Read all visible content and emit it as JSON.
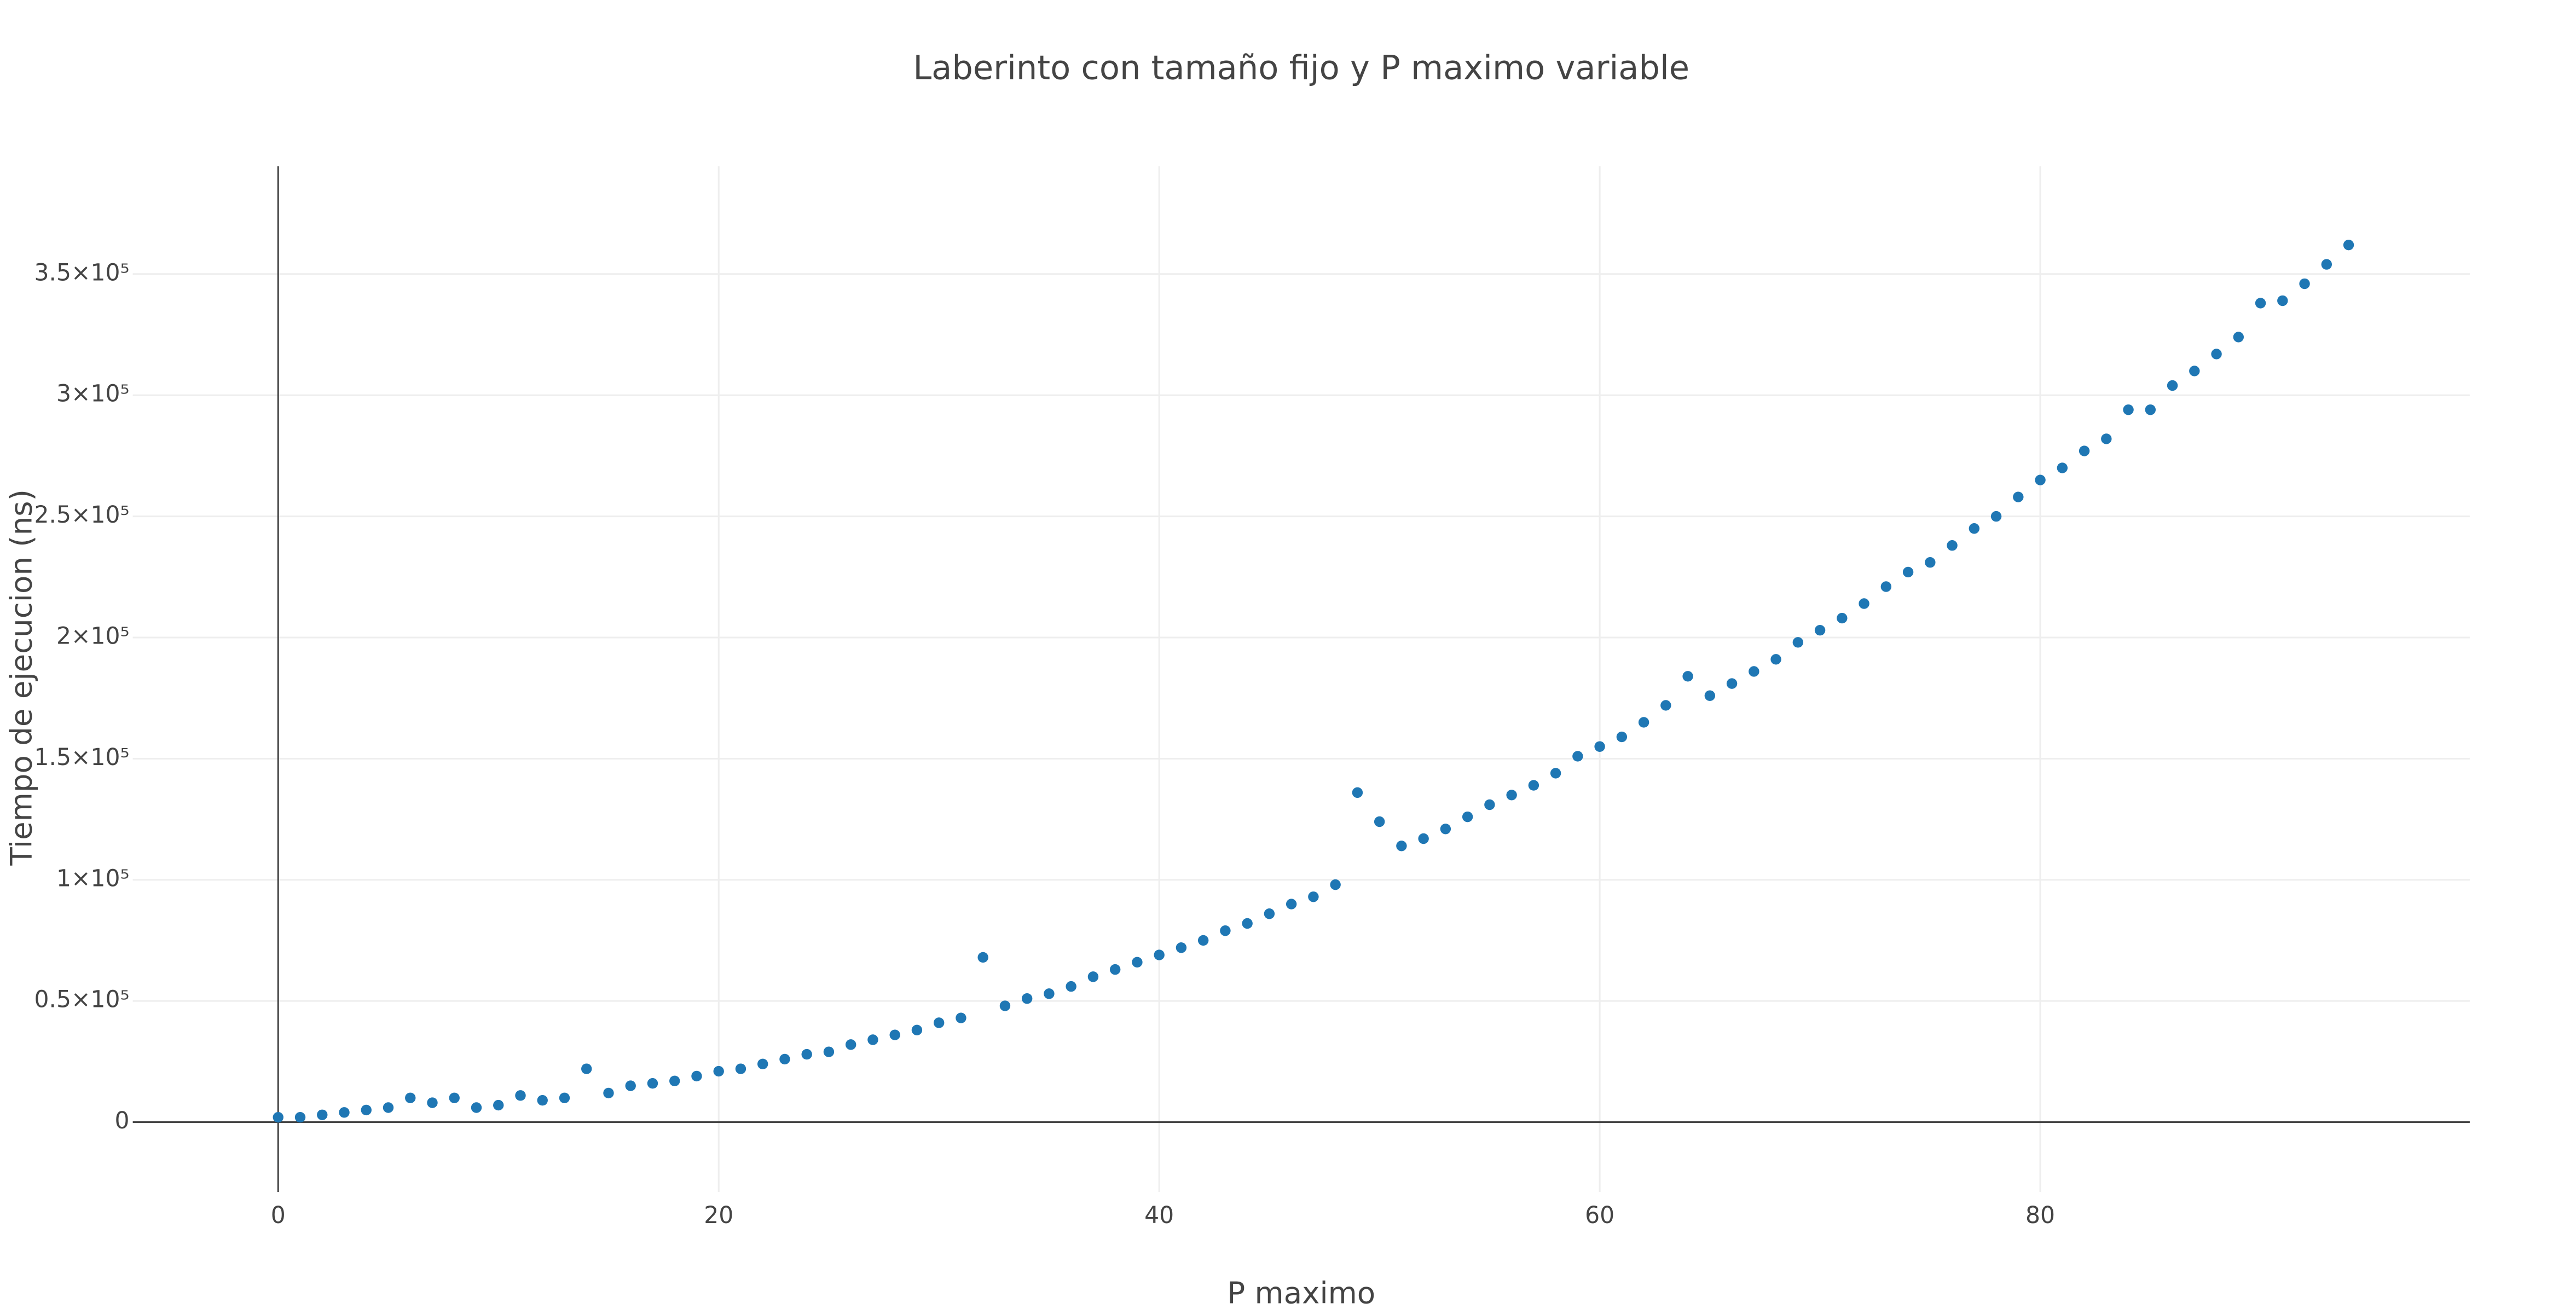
{
  "chart_data": {
    "type": "scatter",
    "title": "Laberinto con tamaño fijo y  P  maximo variable",
    "x_label": "P maximo",
    "y_label": "Tiempo de ejecucion  (ns)",
    "xlim": [
      -6.6,
      99.5
    ],
    "ylim": [
      -28800,
      394500
    ],
    "xticks": [
      0,
      20,
      40,
      60,
      80
    ],
    "yticks": [
      0,
      {
        "value": 50000,
        "label": "0.5×10⁵"
      },
      {
        "value": 100000,
        "label": "1×10⁵"
      },
      {
        "value": 150000,
        "label": "1.5×10⁵"
      },
      {
        "value": 200000,
        "label": "2×10⁵"
      },
      {
        "value": 250000,
        "label": "2.5×10⁵"
      },
      {
        "value": 300000,
        "label": "3×10⁵"
      },
      {
        "value": 350000,
        "label": "3.5×10⁵"
      }
    ],
    "grid": true,
    "color": "#1f77b4",
    "x": [
      0,
      1,
      2,
      3,
      4,
      5,
      6,
      7,
      8,
      9,
      10,
      11,
      12,
      13,
      14,
      15,
      16,
      17,
      18,
      19,
      20,
      21,
      22,
      23,
      24,
      25,
      26,
      27,
      28,
      29,
      30,
      31,
      32,
      33,
      34,
      35,
      36,
      37,
      38,
      39,
      40,
      41,
      42,
      43,
      44,
      45,
      46,
      47,
      48,
      49,
      50,
      51,
      52,
      53,
      54,
      55,
      56,
      57,
      58,
      59,
      60,
      61,
      62,
      63,
      64,
      65,
      66,
      67,
      68,
      69,
      70,
      71,
      72,
      73,
      74,
      75,
      76,
      77,
      78,
      79,
      80,
      81,
      82,
      83,
      84,
      85,
      86,
      87,
      88,
      89,
      90,
      91,
      92,
      93,
      94
    ],
    "values": [
      2000,
      2000,
      3000,
      4000,
      5000,
      6000,
      10000,
      8000,
      10000,
      6000,
      7000,
      11000,
      9000,
      10000,
      22000,
      12000,
      15000,
      16000,
      17000,
      19000,
      21000,
      22000,
      24000,
      26000,
      28000,
      29000,
      32000,
      34000,
      36000,
      38000,
      41000,
      43000,
      68000,
      48000,
      51000,
      53000,
      56000,
      60000,
      63000,
      66000,
      69000,
      72000,
      75000,
      79000,
      82000,
      86000,
      90000,
      93000,
      98000,
      136000,
      124000,
      114000,
      117000,
      121000,
      126000,
      131000,
      135000,
      139000,
      144000,
      151000,
      155000,
      159000,
      165000,
      172000,
      184000,
      176000,
      181000,
      186000,
      191000,
      198000,
      203000,
      208000,
      214000,
      221000,
      227000,
      231000,
      238000,
      245000,
      250000,
      258000,
      265000,
      270000,
      277000,
      282000,
      294000,
      294000,
      304000,
      310000,
      317000,
      324000,
      338000,
      339000,
      346000,
      354000,
      362000
    ]
  }
}
